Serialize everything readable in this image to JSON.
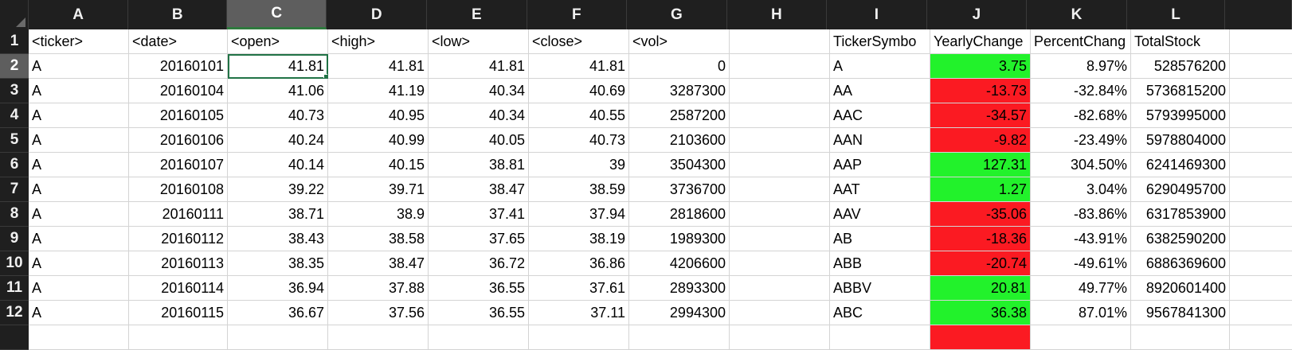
{
  "columns": [
    "A",
    "B",
    "C",
    "D",
    "E",
    "F",
    "G",
    "H",
    "I",
    "J",
    "K",
    "L"
  ],
  "selected_column": "C",
  "selected_row": "2",
  "row_numbers": [
    "1",
    "2",
    "3",
    "4",
    "5",
    "6",
    "7",
    "8",
    "9",
    "10",
    "11",
    "12"
  ],
  "header_row": [
    "<ticker>",
    "<date>",
    "<open>",
    "<high>",
    "<low>",
    "<close>",
    "<vol>",
    "",
    "TickerSymbo",
    "YearlyChange",
    "PercentChang",
    "TotalStock"
  ],
  "rows": [
    {
      "ticker": "A",
      "date": "20160101",
      "open": "41.81",
      "high": "41.81",
      "low": "41.81",
      "close": "41.81",
      "vol": "0",
      "sym": "A",
      "yc": "3.75",
      "yc_sign": "pos",
      "pct": "8.97%",
      "total": "528576200"
    },
    {
      "ticker": "A",
      "date": "20160104",
      "open": "41.06",
      "high": "41.19",
      "low": "40.34",
      "close": "40.69",
      "vol": "3287300",
      "sym": "AA",
      "yc": "-13.73",
      "yc_sign": "neg",
      "pct": "-32.84%",
      "total": "5736815200"
    },
    {
      "ticker": "A",
      "date": "20160105",
      "open": "40.73",
      "high": "40.95",
      "low": "40.34",
      "close": "40.55",
      "vol": "2587200",
      "sym": "AAC",
      "yc": "-34.57",
      "yc_sign": "neg",
      "pct": "-82.68%",
      "total": "5793995000"
    },
    {
      "ticker": "A",
      "date": "20160106",
      "open": "40.24",
      "high": "40.99",
      "low": "40.05",
      "close": "40.73",
      "vol": "2103600",
      "sym": "AAN",
      "yc": "-9.82",
      "yc_sign": "neg",
      "pct": "-23.49%",
      "total": "5978804000"
    },
    {
      "ticker": "A",
      "date": "20160107",
      "open": "40.14",
      "high": "40.15",
      "low": "38.81",
      "close": "39",
      "vol": "3504300",
      "sym": "AAP",
      "yc": "127.31",
      "yc_sign": "pos",
      "pct": "304.50%",
      "total": "6241469300"
    },
    {
      "ticker": "A",
      "date": "20160108",
      "open": "39.22",
      "high": "39.71",
      "low": "38.47",
      "close": "38.59",
      "vol": "3736700",
      "sym": "AAT",
      "yc": "1.27",
      "yc_sign": "pos",
      "pct": "3.04%",
      "total": "6290495700"
    },
    {
      "ticker": "A",
      "date": "20160111",
      "open": "38.71",
      "high": "38.9",
      "low": "37.41",
      "close": "37.94",
      "vol": "2818600",
      "sym": "AAV",
      "yc": "-35.06",
      "yc_sign": "neg",
      "pct": "-83.86%",
      "total": "6317853900"
    },
    {
      "ticker": "A",
      "date": "20160112",
      "open": "38.43",
      "high": "38.58",
      "low": "37.65",
      "close": "38.19",
      "vol": "1989300",
      "sym": "AB",
      "yc": "-18.36",
      "yc_sign": "neg",
      "pct": "-43.91%",
      "total": "6382590200"
    },
    {
      "ticker": "A",
      "date": "20160113",
      "open": "38.35",
      "high": "38.47",
      "low": "36.72",
      "close": "36.86",
      "vol": "4206600",
      "sym": "ABB",
      "yc": "-20.74",
      "yc_sign": "neg",
      "pct": "-49.61%",
      "total": "6886369600"
    },
    {
      "ticker": "A",
      "date": "20160114",
      "open": "36.94",
      "high": "37.88",
      "low": "36.55",
      "close": "37.61",
      "vol": "2893300",
      "sym": "ABBV",
      "yc": "20.81",
      "yc_sign": "pos",
      "pct": "49.77%",
      "total": "8920601400"
    },
    {
      "ticker": "A",
      "date": "20160115",
      "open": "36.67",
      "high": "37.56",
      "low": "36.55",
      "close": "37.11",
      "vol": "2994300",
      "sym": "ABC",
      "yc": "36.38",
      "yc_sign": "pos",
      "pct": "87.01%",
      "total": "9567841300"
    }
  ],
  "colors": {
    "positive": "#22f22b",
    "negative": "#fb1a22",
    "selection": "#217346",
    "header_bg": "#1f1f1f"
  }
}
